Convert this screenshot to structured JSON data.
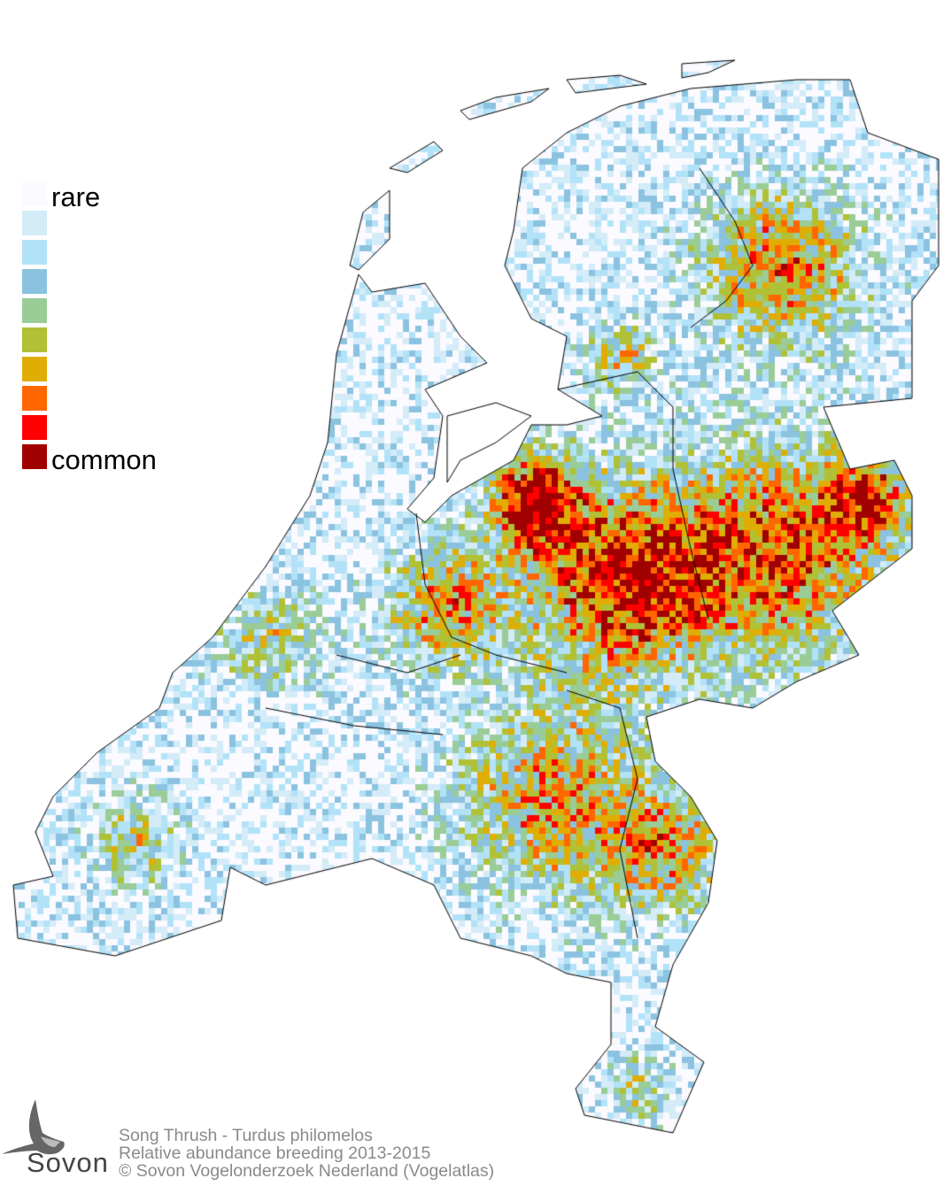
{
  "legend": {
    "label_low": "rare",
    "label_high": "common",
    "colors": [
      "#fafaff",
      "#d4ebf8",
      "#b2e2f8",
      "#8bc2df",
      "#9acc98",
      "#b0c136",
      "#e0ad04",
      "#ff6600",
      "#ff0000",
      "#a00000"
    ]
  },
  "credits": {
    "species": "Song Thrush - Turdus philomelos",
    "subtitle": "Relative abundance breeding 2013-2015",
    "copyright": "© Sovon Vogelonderzoek Nederland (Vogelatlas)"
  },
  "logo": {
    "text": "Sovon",
    "icon": "swallow-icon"
  },
  "border_color": "#000000"
}
